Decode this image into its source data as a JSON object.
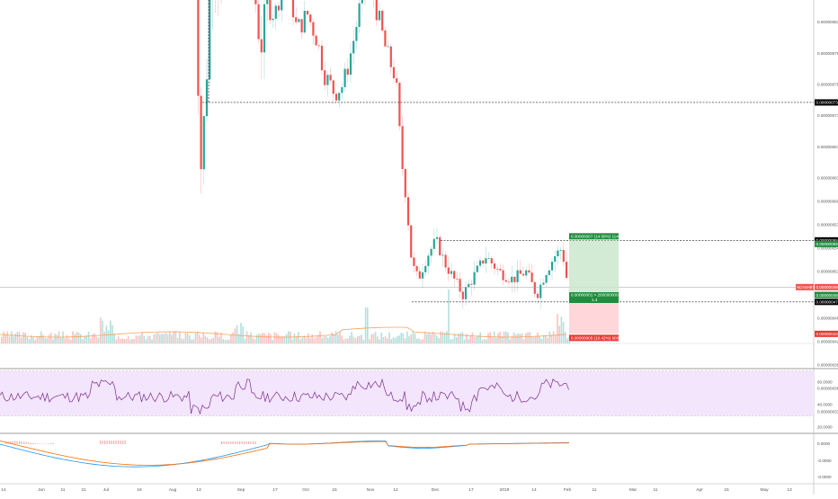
{
  "chart_data": {
    "type": "candlestick",
    "price_axis_labels": [
      "0.00000105",
      "0.00000100",
      "0.00000095",
      "0.00000091",
      "0.00000087",
      "0.00000083",
      "0.00000079",
      "0.00000075",
      "0.00000071",
      "0.00000067",
      "0.00000063",
      "0.00000060",
      "0.00000057",
      "0.00000054",
      "0.00000051",
      "0.00000048",
      "0.00000045",
      "0.00000042",
      "0.00000039",
      "0.00000036",
      "0.00000033"
    ],
    "price_axis_values": [
      105,
      100,
      95,
      91,
      87,
      83,
      79,
      75,
      71,
      67,
      63,
      60,
      57,
      54,
      51,
      48,
      45,
      42,
      39,
      36,
      33
    ],
    "date_axis_labels": [
      "14",
      "Jun",
      "11",
      "21",
      "Jul",
      "16",
      "Aug",
      "13",
      "Sep",
      "17",
      "Oct",
      "15",
      "Nov",
      "12",
      "Dec",
      "17",
      "2019",
      "14",
      "Feb",
      "11",
      "Mar",
      "11",
      "Apr",
      "15",
      "May",
      "13"
    ],
    "level_tags": [
      {
        "label": "0.00000097",
        "value": 97.2,
        "style": "black"
      },
      {
        "label": "0.00000073",
        "value": 72.7,
        "style": "black"
      },
      {
        "label": "0.00000055",
        "value": 55.0,
        "style": "black"
      },
      {
        "label": "0.00000047",
        "value": 47.1,
        "style": "black"
      }
    ],
    "current_tag": {
      "label": "0.00000049",
      "value": 49.0
    },
    "symbol_tag": "NCASHBTC",
    "position": {
      "entry": 48.0,
      "target": 55.0,
      "stop": 43.0,
      "target_label": "0.00000007 (14.58%) 1140",
      "target_price": "0.00000055",
      "entry_label": "0.00000001 × 200000000",
      "rr_label": "1.4",
      "entry_price": "0.00000048",
      "stop_label": "0.00000005 (10.42%) 900",
      "stop_price": "0.00000043"
    },
    "rsi": {
      "labels": [
        "60.0000",
        "40.0000",
        "20.0000"
      ],
      "values": [
        60,
        40,
        20
      ],
      "upper": 70,
      "lower": 30
    },
    "macd": {
      "labels": [
        "0.0000",
        "-0.0000",
        "-0.0000"
      ]
    },
    "colors": {
      "up": "#26a69a",
      "down": "#ef5350",
      "rsi_line": "#7b2d8e",
      "rsi_band": "#f3e5fc",
      "macd": "#2196f3",
      "signal": "#ff6d00",
      "ma": "#f7a35c"
    }
  }
}
